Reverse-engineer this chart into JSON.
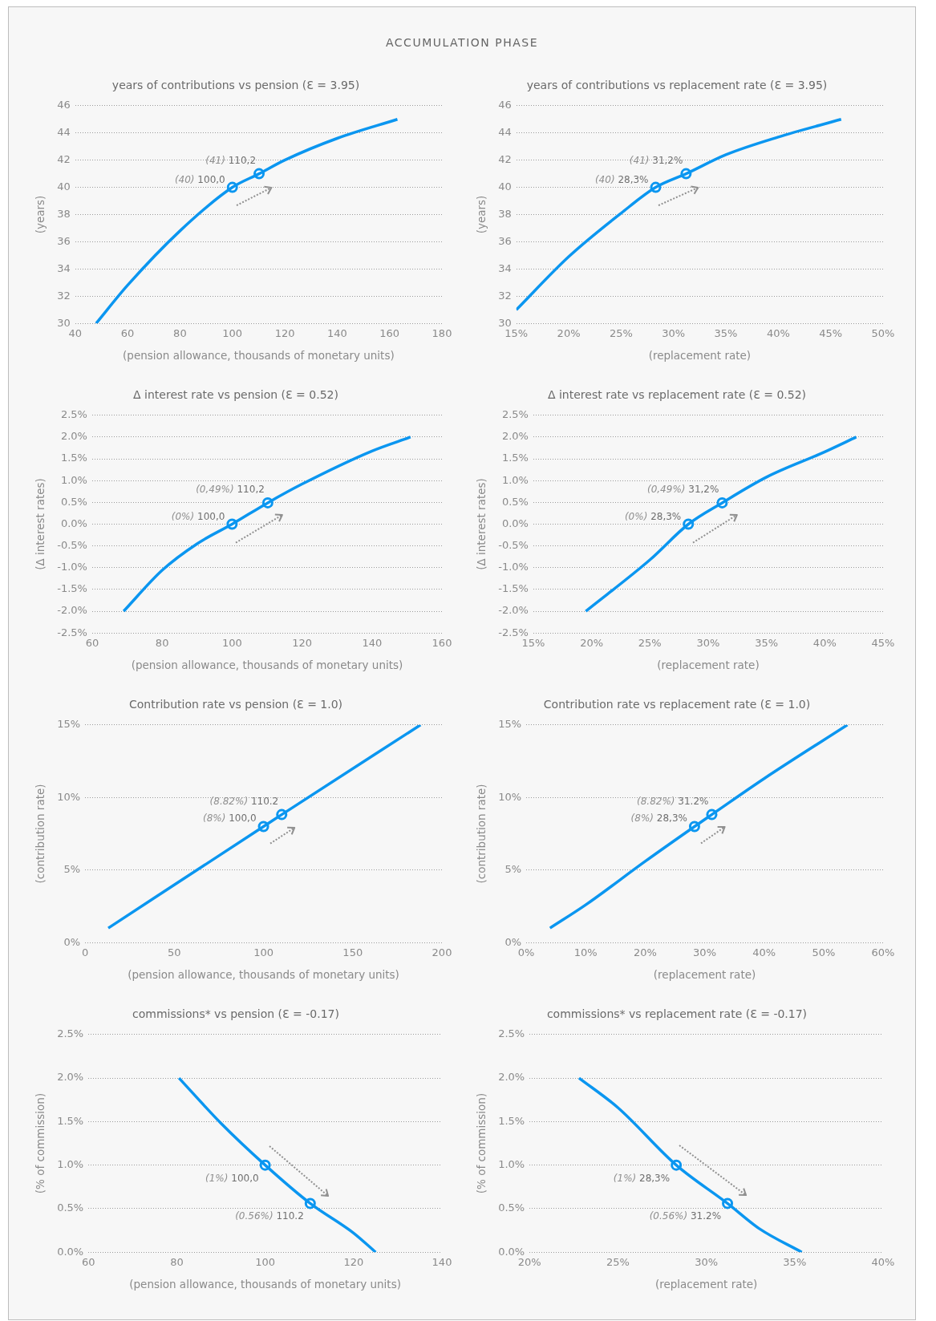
{
  "chart_data": [
    {
      "type": "other",
      "title": "ACCUMULATION PHASE"
    },
    {
      "type": "line",
      "title": "years of contributions vs pension (Ɛ = 3.95)",
      "xlabel": "(pension allowance, thousands of monetary units)",
      "ylabel": "(years)",
      "xlim": [
        40,
        180
      ],
      "xticks": [
        40,
        60,
        80,
        100,
        120,
        140,
        160,
        180
      ],
      "ylim": [
        30,
        46
      ],
      "yticks": [
        30,
        32,
        34,
        36,
        38,
        40,
        42,
        44,
        46
      ],
      "grid": "y",
      "series": [
        {
          "type": "line",
          "color": "#0b96f0",
          "x": [
            48,
            60,
            80,
            100,
            110.2,
            120,
            140,
            163
          ],
          "values": [
            30,
            32.8,
            36.8,
            40,
            41,
            42,
            43.6,
            45
          ]
        },
        {
          "type": "scatter",
          "marker": "circle",
          "color": "#0b96f0",
          "x": [
            100,
            110.2
          ],
          "values": [
            40,
            41
          ]
        }
      ],
      "annotations": [
        {
          "text": "(40) 100,0",
          "x": 100,
          "y": 40
        },
        {
          "text": "(41) 110,2",
          "x": 110.2,
          "y": 41
        }
      ]
    },
    {
      "type": "line",
      "title": "years of contributions vs replacement rate (Ɛ = 3.95)",
      "xlabel": "(replacement rate)",
      "ylabel": "(years)",
      "xlim": [
        15,
        50
      ],
      "xticks": [
        {
          "value": 15,
          "label": "15%"
        },
        {
          "value": 20,
          "label": "20%"
        },
        {
          "value": 25,
          "label": "25%"
        },
        {
          "value": 30,
          "label": "30%"
        },
        {
          "value": 35,
          "label": "35%"
        },
        {
          "value": 40,
          "label": "40%"
        },
        {
          "value": 45,
          "label": "45%"
        },
        {
          "value": 50,
          "label": "50%"
        }
      ],
      "ylim": [
        30,
        46
      ],
      "yticks": [
        30,
        32,
        34,
        36,
        38,
        40,
        42,
        44,
        46
      ],
      "grid": "y",
      "series": [
        {
          "type": "line",
          "color": "#0b96f0",
          "x": [
            15,
            20,
            25,
            28.3,
            31.2,
            35,
            40,
            46
          ],
          "values": [
            31,
            34.9,
            38.1,
            40,
            41,
            42.4,
            43.7,
            45
          ]
        },
        {
          "type": "scatter",
          "marker": "circle",
          "color": "#0b96f0",
          "x": [
            28.3,
            31.2
          ],
          "values": [
            40,
            41
          ]
        }
      ],
      "annotations": [
        {
          "text": "(40) 28,3%",
          "x": 28.3,
          "y": 40
        },
        {
          "text": "(41) 31,2%",
          "x": 31.2,
          "y": 41
        }
      ]
    },
    {
      "type": "line",
      "title": "Δ interest rate vs pension (Ɛ = 0.52)",
      "xlabel": "(pension allowance, thousands of monetary units)",
      "ylabel": "(Δ interest rates)",
      "xlim": [
        60,
        160
      ],
      "xticks": [
        60,
        80,
        100,
        120,
        140,
        160
      ],
      "ylim": [
        -2.5,
        2.5
      ],
      "yticks": [
        {
          "value": -2.5,
          "label": "-2.5%"
        },
        {
          "value": -2,
          "label": "-2.0%"
        },
        {
          "value": -1.5,
          "label": "-1.5%"
        },
        {
          "value": -1,
          "label": "-1.0%"
        },
        {
          "value": -0.5,
          "label": "-0.5%"
        },
        {
          "value": 0,
          "label": "0.0%"
        },
        {
          "value": 0.5,
          "label": "0.5%"
        },
        {
          "value": 1,
          "label": "1.0%"
        },
        {
          "value": 1.5,
          "label": "1.5%"
        },
        {
          "value": 2,
          "label": "2.0%"
        },
        {
          "value": 2.5,
          "label": "2.5%"
        }
      ],
      "grid": "y",
      "series": [
        {
          "type": "line",
          "color": "#0b96f0",
          "x": [
            69,
            80,
            90,
            100,
            110.2,
            120,
            140,
            151
          ],
          "values": [
            -2,
            -1.06,
            -0.45,
            0,
            0.49,
            0.92,
            1.68,
            2
          ]
        },
        {
          "type": "scatter",
          "marker": "circle",
          "color": "#0b96f0",
          "x": [
            100,
            110.2
          ],
          "values": [
            0,
            0.49
          ]
        }
      ],
      "annotations": [
        {
          "text": "(0%) 100,0",
          "x": 100,
          "y": 0
        },
        {
          "text": "(0,49%) 110,2",
          "x": 110.2,
          "y": 0.49
        }
      ]
    },
    {
      "type": "line",
      "title": "Δ interest rate vs replacement rate (Ɛ = 0.52)",
      "xlabel": "(replacement rate)",
      "ylabel": "(Δ interest rates)",
      "xlim": [
        15,
        45
      ],
      "xticks": [
        {
          "value": 15,
          "label": "15%"
        },
        {
          "value": 20,
          "label": "20%"
        },
        {
          "value": 25,
          "label": "25%"
        },
        {
          "value": 30,
          "label": "30%"
        },
        {
          "value": 35,
          "label": "35%"
        },
        {
          "value": 40,
          "label": "40%"
        },
        {
          "value": 45,
          "label": "45%"
        }
      ],
      "ylim": [
        -2.5,
        2.5
      ],
      "yticks": [
        {
          "value": -2.5,
          "label": "-2.5%"
        },
        {
          "value": -2,
          "label": "-2.0%"
        },
        {
          "value": -1.5,
          "label": "-1.5%"
        },
        {
          "value": -1,
          "label": "-1.0%"
        },
        {
          "value": -0.5,
          "label": "-0.5%"
        },
        {
          "value": 0,
          "label": "0.0%"
        },
        {
          "value": 0.5,
          "label": "0.5%"
        },
        {
          "value": 1,
          "label": "1.0%"
        },
        {
          "value": 1.5,
          "label": "1.5%"
        },
        {
          "value": 2,
          "label": "2.0%"
        },
        {
          "value": 2.5,
          "label": "2.5%"
        }
      ],
      "grid": "y",
      "series": [
        {
          "type": "line",
          "color": "#0b96f0",
          "x": [
            19.5,
            25,
            28.3,
            31.2,
            35,
            40,
            42.7
          ],
          "values": [
            -2,
            -0.82,
            0,
            0.49,
            1.08,
            1.66,
            2
          ]
        },
        {
          "type": "scatter",
          "marker": "circle",
          "color": "#0b96f0",
          "x": [
            28.3,
            31.2
          ],
          "values": [
            0,
            0.49
          ]
        }
      ],
      "annotations": [
        {
          "text": "(0%) 28,3%",
          "x": 28.3,
          "y": 0
        },
        {
          "text": "(0,49%) 31,2%",
          "x": 31.2,
          "y": 0.49
        }
      ]
    },
    {
      "type": "line",
      "title": "Contribution rate vs pension (Ɛ = 1.0)",
      "xlabel": "(pension allowance, thousands of monetary units)",
      "ylabel": "(contribution rate)",
      "xlim": [
        0,
        200
      ],
      "xticks": [
        0,
        50,
        100,
        150,
        200
      ],
      "ylim": [
        0,
        15
      ],
      "yticks": [
        {
          "value": 0,
          "label": "0%"
        },
        {
          "value": 5,
          "label": "5%"
        },
        {
          "value": 10,
          "label": "10%"
        },
        {
          "value": 15,
          "label": "15%"
        }
      ],
      "grid": "y",
      "series": [
        {
          "type": "line",
          "color": "#0b96f0",
          "x": [
            13,
            100,
            110.2,
            188
          ],
          "values": [
            1,
            8,
            8.82,
            15
          ]
        },
        {
          "type": "scatter",
          "marker": "circle",
          "color": "#0b96f0",
          "x": [
            100,
            110.2
          ],
          "values": [
            8,
            8.82
          ]
        }
      ],
      "annotations": [
        {
          "text": "(8%) 100,0",
          "x": 100,
          "y": 8
        },
        {
          "text": "(8.82%) 110.2",
          "x": 110.2,
          "y": 8.82
        }
      ]
    },
    {
      "type": "line",
      "title": "Contribution rate vs replacement rate (Ɛ = 1.0)",
      "xlabel": "(replacement rate)",
      "ylabel": "(contribution rate)",
      "xlim": [
        0,
        60
      ],
      "xticks": [
        {
          "value": 0,
          "label": "0%"
        },
        {
          "value": 10,
          "label": "10%"
        },
        {
          "value": 20,
          "label": "20%"
        },
        {
          "value": 30,
          "label": "30%"
        },
        {
          "value": 40,
          "label": "40%"
        },
        {
          "value": 50,
          "label": "50%"
        },
        {
          "value": 60,
          "label": "60%"
        }
      ],
      "ylim": [
        0,
        15
      ],
      "yticks": [
        {
          "value": 0,
          "label": "0%"
        },
        {
          "value": 5,
          "label": "5%"
        },
        {
          "value": 10,
          "label": "10%"
        },
        {
          "value": 15,
          "label": "15%"
        }
      ],
      "grid": "y",
      "series": [
        {
          "type": "line",
          "color": "#0b96f0",
          "x": [
            4,
            10,
            20,
            28.3,
            31.2,
            40,
            54
          ],
          "values": [
            1,
            2.6,
            5.6,
            8,
            8.82,
            11.3,
            15
          ]
        },
        {
          "type": "scatter",
          "marker": "circle",
          "color": "#0b96f0",
          "x": [
            28.3,
            31.2
          ],
          "values": [
            8,
            8.82
          ]
        }
      ],
      "annotations": [
        {
          "text": "(8%) 28,3%",
          "x": 28.3,
          "y": 8
        },
        {
          "text": "(8.82%) 31.2%",
          "x": 31.2,
          "y": 8.82
        }
      ]
    },
    {
      "type": "line",
      "title": "commissions* vs pension (Ɛ = -0.17)",
      "xlabel": "(pension allowance, thousands of monetary units)",
      "ylabel": "(% of commission)",
      "xlim": [
        60,
        140
      ],
      "xticks": [
        60,
        80,
        100,
        120,
        140
      ],
      "ylim": [
        0,
        2.5
      ],
      "yticks": [
        {
          "value": 0,
          "label": "0.0%"
        },
        {
          "value": 0.5,
          "label": "0.5%"
        },
        {
          "value": 1,
          "label": "1.0%"
        },
        {
          "value": 1.5,
          "label": "1.5%"
        },
        {
          "value": 2,
          "label": "2.0%"
        },
        {
          "value": 2.5,
          "label": "2.5%"
        }
      ],
      "grid": "y",
      "series": [
        {
          "type": "line",
          "color": "#0b96f0",
          "x": [
            80.5,
            90,
            100,
            110.2,
            120,
            125
          ],
          "values": [
            2,
            1.48,
            1,
            0.56,
            0.22,
            0
          ]
        },
        {
          "type": "scatter",
          "marker": "circle",
          "color": "#0b96f0",
          "x": [
            100,
            110.2
          ],
          "values": [
            1,
            0.56
          ]
        }
      ],
      "annotations": [
        {
          "text": "(1%) 100,0",
          "x": 100,
          "y": 1
        },
        {
          "text": "(0.56%) 110.2",
          "x": 110.2,
          "y": 0.56
        }
      ]
    },
    {
      "type": "line",
      "title": "commissions* vs replacement rate (Ɛ = -0.17)",
      "xlabel": "(replacement rate)",
      "ylabel": "(% of commission)",
      "xlim": [
        20,
        40
      ],
      "xticks": [
        {
          "value": 20,
          "label": "20%"
        },
        {
          "value": 25,
          "label": "25%"
        },
        {
          "value": 30,
          "label": "30%"
        },
        {
          "value": 35,
          "label": "35%"
        },
        {
          "value": 40,
          "label": "40%"
        }
      ],
      "ylim": [
        0,
        2.5
      ],
      "yticks": [
        {
          "value": 0,
          "label": "0.0%"
        },
        {
          "value": 0.5,
          "label": "0.5%"
        },
        {
          "value": 1,
          "label": "1.0%"
        },
        {
          "value": 1.5,
          "label": "1.5%"
        },
        {
          "value": 2,
          "label": "2.0%"
        },
        {
          "value": 2.5,
          "label": "2.5%"
        }
      ],
      "grid": "y",
      "series": [
        {
          "type": "line",
          "color": "#0b96f0",
          "x": [
            22.8,
            25,
            28.3,
            31.2,
            33,
            35.4
          ],
          "values": [
            2,
            1.66,
            1,
            0.56,
            0.27,
            0
          ]
        },
        {
          "type": "scatter",
          "marker": "circle",
          "color": "#0b96f0",
          "x": [
            28.3,
            31.2
          ],
          "values": [
            1,
            0.56
          ]
        }
      ],
      "annotations": [
        {
          "text": "(1%) 28,3%",
          "x": 28.3,
          "y": 1
        },
        {
          "text": "(0.56%) 31.2%",
          "x": 31.2,
          "y": 0.56
        }
      ]
    }
  ]
}
